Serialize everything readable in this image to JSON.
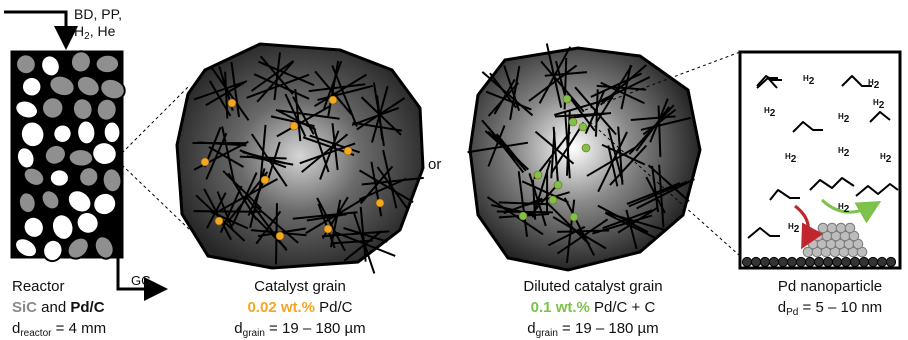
{
  "feed": {
    "line1": "BD, PP,",
    "h": "H",
    "h_sub": "2",
    "rest": ", He"
  },
  "gc_label": "GC",
  "or_label": "or",
  "reactor": {
    "title": "Reactor",
    "sic": "SiC",
    "and": " and ",
    "pdc": "Pd/C",
    "d": "d",
    "d_sub": "reactor",
    "d_value": " = 4 mm"
  },
  "catalyst_grain": {
    "title": "Catalyst grain",
    "loading": "0.02 wt.%",
    "material": " Pd/C",
    "d": "d",
    "d_sub": "grain",
    "d_value": " = 19 – 180 µm"
  },
  "diluted_grain": {
    "title": "Diluted catalyst grain",
    "loading": "0.1 wt.%",
    "material": " Pd/C + C",
    "d": "d",
    "d_sub": "grain",
    "d_value": " = 19 – 180 µm"
  },
  "nanoparticle": {
    "title": "Pd nanoparticle",
    "d": "d",
    "d_sub": "Pd",
    "d_value": " = 5 – 10 nm",
    "h2_text": "H",
    "h2_sub": "2"
  },
  "colors": {
    "orange": "#f5a623",
    "green": "#7dc24b",
    "red": "#c0272d",
    "gray": "#8a8a8a"
  }
}
